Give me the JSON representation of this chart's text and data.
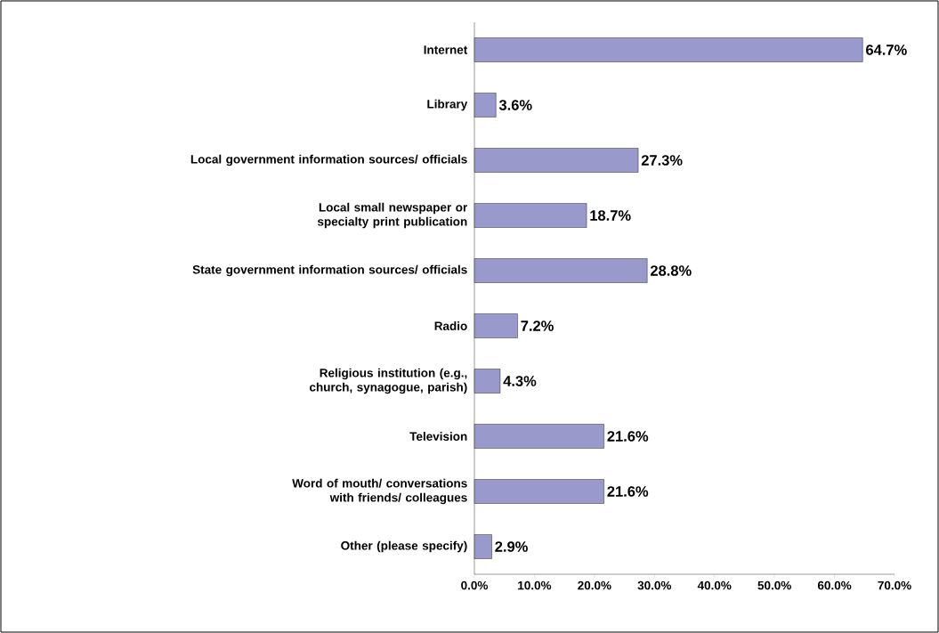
{
  "chart_data": {
    "type": "bar",
    "orientation": "horizontal",
    "categories": [
      "Internet",
      "Library",
      "Local government information sources/ officials",
      "Local small newspaper or specialty print publication",
      "State government information sources/ officials",
      "Radio",
      "Religious institution (e.g., church, synagogue, parish)",
      "Television",
      "Word of mouth/ conversations with friends/ colleagues",
      "Other (please specify)"
    ],
    "values": [
      64.7,
      3.6,
      27.3,
      18.7,
      28.8,
      7.2,
      4.3,
      21.6,
      21.6,
      2.9
    ],
    "value_labels": [
      "64.7%",
      "3.6%",
      "27.3%",
      "18.7%",
      "28.8%",
      "7.2%",
      "4.3%",
      "21.6%",
      "21.6%",
      "2.9%"
    ],
    "color": "#9999cc",
    "xlim": [
      0,
      70
    ],
    "xticks": [
      {
        "value": 0,
        "label": "0.0%"
      },
      {
        "value": 10,
        "label": "10.0%"
      },
      {
        "value": 20,
        "label": "20.0%"
      },
      {
        "value": 30,
        "label": "30.0%"
      },
      {
        "value": 40,
        "label": "40.0%"
      },
      {
        "value": 50,
        "label": "50.0%"
      },
      {
        "value": 60,
        "label": "60.0%"
      },
      {
        "value": 70,
        "label": "70.0%"
      }
    ]
  }
}
